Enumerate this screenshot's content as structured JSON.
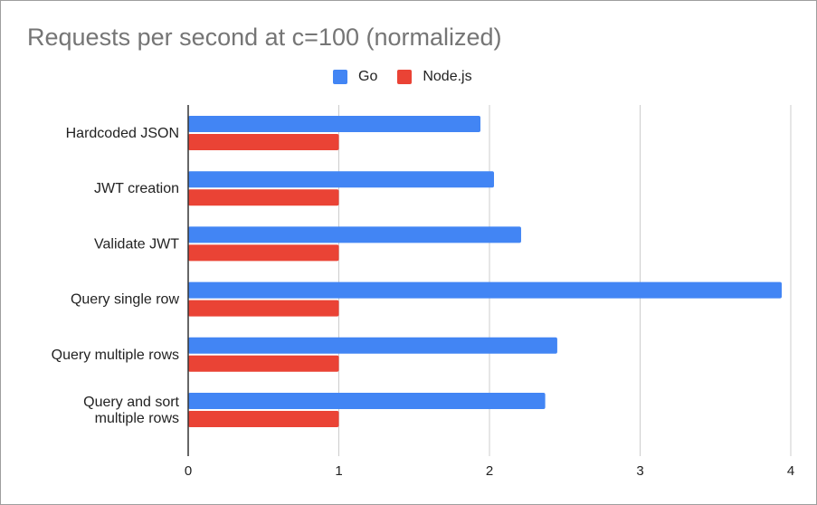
{
  "chart_data": {
    "type": "bar",
    "orientation": "horizontal",
    "title": "Requests per second at c=100 (normalized)",
    "categories": [
      [
        "Hardcoded JSON"
      ],
      [
        "JWT creation"
      ],
      [
        "Validate JWT"
      ],
      [
        "Query single row"
      ],
      [
        "Query multiple rows"
      ],
      [
        "Query and sort",
        "multiple rows"
      ]
    ],
    "series": [
      {
        "name": "Go",
        "color": "#4285f4",
        "values": [
          1.94,
          2.03,
          2.21,
          3.94,
          2.45,
          2.37
        ]
      },
      {
        "name": "Node.js",
        "color": "#ea4335",
        "values": [
          1.0,
          1.0,
          1.0,
          1.0,
          1.0,
          1.0
        ]
      }
    ],
    "xlim": [
      0,
      4
    ],
    "xticks": [
      "0",
      "1",
      "2",
      "3",
      "4"
    ],
    "grid": true,
    "legend_position": "top-center",
    "xlabel": "",
    "ylabel": ""
  }
}
